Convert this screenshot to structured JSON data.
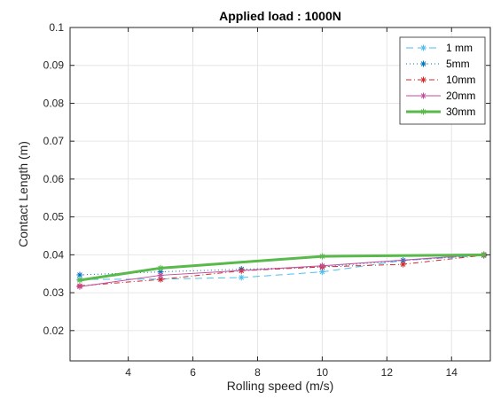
{
  "chart_data": {
    "type": "line",
    "title": "Applied load : 1000N",
    "xlabel": "Rolling speed (m/s)",
    "ylabel": "Contact Length (m)",
    "xlim": [
      2.2,
      15.2
    ],
    "ylim": [
      0.012,
      0.1
    ],
    "xticks": [
      4,
      6,
      8,
      10,
      12,
      14
    ],
    "yticks": [
      0.02,
      0.03,
      0.04,
      0.05,
      0.06,
      0.07,
      0.08,
      0.09,
      0.1
    ],
    "grid": true,
    "legend_position": "top-right",
    "series": [
      {
        "name": "1 mm",
        "color": "#4DBEEE",
        "dash": "8,5",
        "width": 1,
        "marker": "asterisk",
        "x": [
          2.5,
          5,
          7.5,
          10,
          12.5,
          15
        ],
        "y": [
          0.0335,
          0.0336,
          0.034,
          0.0355,
          0.0385,
          0.0398
        ]
      },
      {
        "name": "5mm",
        "color": "#0072BD",
        "dash": "1,3",
        "width": 1,
        "marker": "asterisk",
        "x": [
          2.5,
          5,
          7.5,
          10,
          12.5,
          15
        ],
        "y": [
          0.0347,
          0.0355,
          0.0362,
          0.0368,
          0.0385,
          0.0399
        ]
      },
      {
        "name": "10mm",
        "color": "#D62728",
        "dash": "6,3,1,3",
        "width": 1,
        "marker": "asterisk",
        "x": [
          2.5,
          5,
          7.5,
          10,
          12.5,
          15
        ],
        "y": [
          0.0318,
          0.0335,
          0.0358,
          0.0368,
          0.0375,
          0.0399
        ]
      },
      {
        "name": "20mm",
        "color": "#C44B9C",
        "dash": "",
        "width": 1,
        "marker": "asterisk",
        "x": [
          2.5,
          5,
          10,
          15
        ],
        "y": [
          0.0316,
          0.0346,
          0.0371,
          0.0401
        ]
      },
      {
        "name": "30mm",
        "color": "#59B94B",
        "dash": "",
        "width": 3,
        "marker": "asterisk",
        "x": [
          2.5,
          5,
          10,
          15
        ],
        "y": [
          0.0333,
          0.0365,
          0.0396,
          0.04
        ]
      }
    ]
  }
}
